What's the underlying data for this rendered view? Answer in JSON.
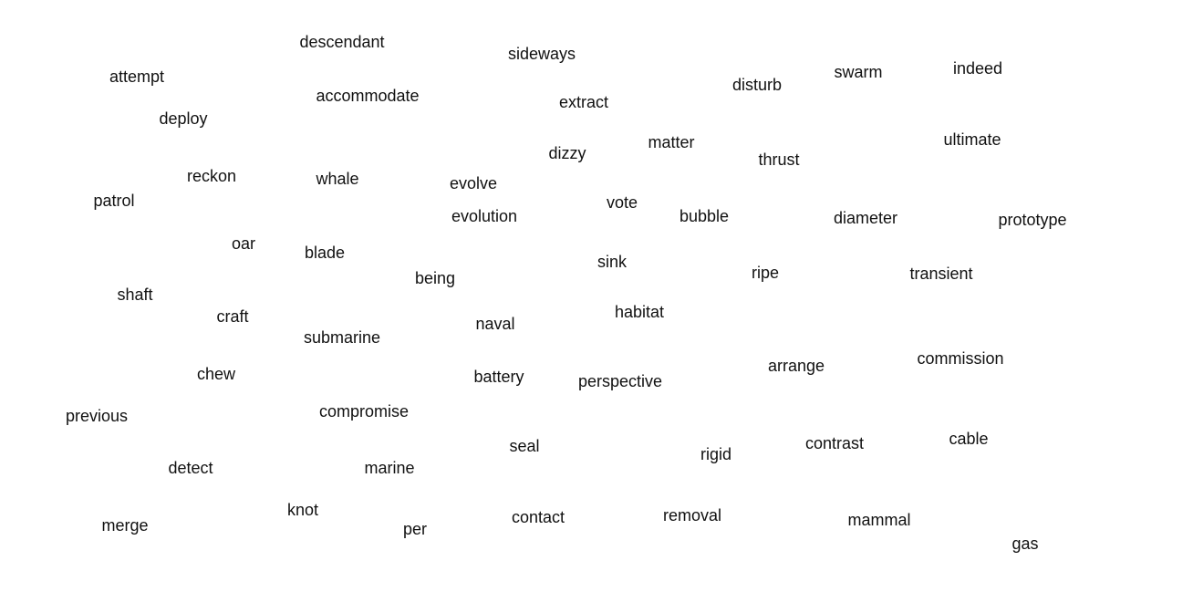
{
  "words": [
    "descendant",
    "sideways",
    "attempt",
    "accommodate",
    "extract",
    "disturb",
    "swarm",
    "indeed",
    "deploy",
    "dizzy",
    "matter",
    "thrust",
    "ultimate",
    "reckon",
    "whale",
    "evolve",
    "patrol",
    "vote",
    "evolution",
    "bubble",
    "diameter",
    "prototype",
    "oar",
    "blade",
    "sink",
    "being",
    "ripe",
    "transient",
    "shaft",
    "craft",
    "habitat",
    "naval",
    "submarine",
    "arrange",
    "commission",
    "chew",
    "battery",
    "perspective",
    "compromise",
    "previous",
    "seal",
    "rigid",
    "contrast",
    "cable",
    "detect",
    "marine",
    "knot",
    "contact",
    "removal",
    "merge",
    "mammal",
    "per",
    "gas"
  ]
}
